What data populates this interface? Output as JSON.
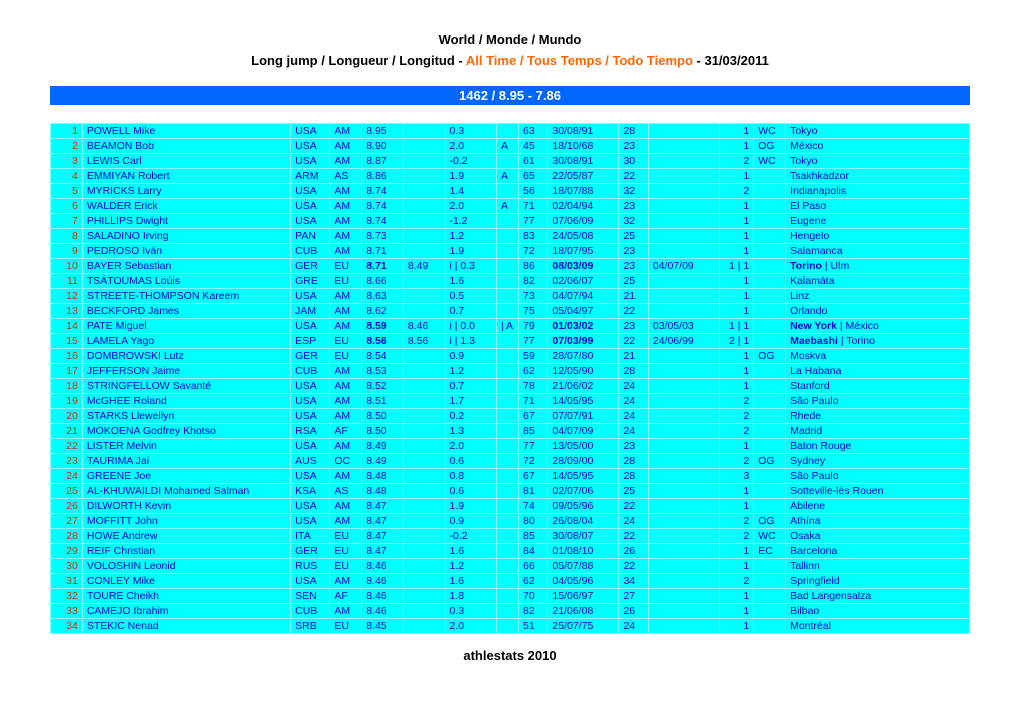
{
  "header": {
    "line1": "World / Monde / Mundo",
    "line2_prefix": "Long jump / Longueur / Longitud - ",
    "line2_alltime": "All Time / Tous Temps / Todo Tiempo",
    "line2_suffix": " - 31/03/2011"
  },
  "summary": "1462 / 8.95 - 7.86",
  "footer": "athlestats 2010",
  "colors": {
    "row_bg": "#00ffff",
    "bar_bg": "#0066ff",
    "text": "#0000cc",
    "rank": "#cc3300",
    "alltime": "#ff6600"
  },
  "rows": [
    {
      "rank": "1",
      "name": "POWELL Mike",
      "nat": "USA",
      "area": "AM",
      "mark": "8.95",
      "mark2": "",
      "wind": "0.3",
      "flag": "",
      "yob": "63",
      "date": "30/08/91",
      "age": "28",
      "date2": "",
      "pos": "1",
      "cat": "WC",
      "venue": "Tokyo"
    },
    {
      "rank": "2",
      "name": "BEAMON Bob",
      "nat": "USA",
      "area": "AM",
      "mark": "8.90",
      "mark2": "",
      "wind": "2.0",
      "flag": "A",
      "yob": "45",
      "date": "18/10/68",
      "age": "23",
      "date2": "",
      "pos": "1",
      "cat": "OG",
      "venue": "México"
    },
    {
      "rank": "3",
      "name": "LEWIS Carl",
      "nat": "USA",
      "area": "AM",
      "mark": "8.87",
      "mark2": "",
      "wind": "-0.2",
      "flag": "",
      "yob": "61",
      "date": "30/08/91",
      "age": "30",
      "date2": "",
      "pos": "2",
      "cat": "WC",
      "venue": "Tokyo"
    },
    {
      "rank": "4",
      "name": "EMMIYAN Robert",
      "nat": "ARM",
      "area": "AS",
      "mark": "8.86",
      "mark2": "",
      "wind": "1.9",
      "flag": "A",
      "yob": "65",
      "date": "22/05/87",
      "age": "22",
      "date2": "",
      "pos": "1",
      "cat": "",
      "venue": "Tsakhkadzor"
    },
    {
      "rank": "5",
      "name": "MYRICKS Larry",
      "nat": "USA",
      "area": "AM",
      "mark": "8.74",
      "mark2": "",
      "wind": "1.4",
      "flag": "",
      "yob": "56",
      "date": "18/07/88",
      "age": "32",
      "date2": "",
      "pos": "2",
      "cat": "",
      "venue": "Indianapolis"
    },
    {
      "rank": "6",
      "name": "WALDER Erick",
      "nat": "USA",
      "area": "AM",
      "mark": "8.74",
      "mark2": "",
      "wind": "2.0",
      "flag": "A",
      "yob": "71",
      "date": "02/04/94",
      "age": "23",
      "date2": "",
      "pos": "1",
      "cat": "",
      "venue": "El Paso"
    },
    {
      "rank": "7",
      "name": "PHILLIPS Dwight",
      "nat": "USA",
      "area": "AM",
      "mark": "8.74",
      "mark2": "",
      "wind": "-1.2",
      "flag": "",
      "yob": "77",
      "date": "07/06/09",
      "age": "32",
      "date2": "",
      "pos": "1",
      "cat": "",
      "venue": "Eugene"
    },
    {
      "rank": "8",
      "name": "SALADINO Irving",
      "nat": "PAN",
      "area": "AM",
      "mark": "8.73",
      "mark2": "",
      "wind": "1.2",
      "flag": "",
      "yob": "83",
      "date": "24/05/08",
      "age": "25",
      "date2": "",
      "pos": "1",
      "cat": "",
      "venue": "Hengelo"
    },
    {
      "rank": "9",
      "name": "PEDROSO Iván",
      "nat": "CUB",
      "area": "AM",
      "mark": "8.71",
      "mark2": "",
      "wind": "1.9",
      "flag": "",
      "yob": "72",
      "date": "18/07/95",
      "age": "23",
      "date2": "",
      "pos": "1",
      "cat": "",
      "venue": "Salamanca"
    },
    {
      "rank": "10",
      "name": "BAYER Sebastian",
      "nat": "GER",
      "area": "EU",
      "mark": "8.71",
      "mark_bold": true,
      "mark2": "8.49",
      "wind": "i | 0.3",
      "flag": "",
      "yob": "86",
      "date": "08/03/09",
      "date_bold": true,
      "age": "23",
      "date2": "04/07/09",
      "pos": "1 | 1",
      "cat": "",
      "venue": "Torino | Ulm",
      "venue_bold_prefix": "Torino"
    },
    {
      "rank": "11",
      "name": "TSÁTOUMAS Loúis",
      "nat": "GRE",
      "area": "EU",
      "mark": "8.66",
      "mark2": "",
      "wind": "1.6",
      "flag": "",
      "yob": "82",
      "date": "02/06/07",
      "age": "25",
      "date2": "",
      "pos": "1",
      "cat": "",
      "venue": "Kalamáta"
    },
    {
      "rank": "12",
      "name": "STREETE-THOMPSON Kareem",
      "nat": "USA",
      "area": "AM",
      "mark": "8.63",
      "mark2": "",
      "wind": "0.5",
      "flag": "",
      "yob": "73",
      "date": "04/07/94",
      "age": "21",
      "date2": "",
      "pos": "1",
      "cat": "",
      "venue": "Linz"
    },
    {
      "rank": "13",
      "name": "BECKFORD James",
      "nat": "JAM",
      "area": "AM",
      "mark": "8.62",
      "mark2": "",
      "wind": "0.7",
      "flag": "",
      "yob": "75",
      "date": "05/04/97",
      "age": "22",
      "date2": "",
      "pos": "1",
      "cat": "",
      "venue": "Orlando"
    },
    {
      "rank": "14",
      "name": "PATE Miguel",
      "nat": "USA",
      "area": "AM",
      "mark": "8.59",
      "mark_bold": true,
      "mark2": "8.46",
      "wind": "i | 0.0",
      "flag": "| A",
      "yob": "79",
      "date": "01/03/02",
      "date_bold": true,
      "age": "23",
      "date2": "03/05/03",
      "pos": "1 | 1",
      "cat": "",
      "venue": "New York | México",
      "venue_bold_prefix": "New York"
    },
    {
      "rank": "15",
      "name": "LAMELA Yago",
      "nat": "ESP",
      "area": "EU",
      "mark": "8.56",
      "mark_bold": true,
      "mark2": "8.56",
      "wind": "i | 1.3",
      "flag": "",
      "yob": "77",
      "date": "07/03/99",
      "date_bold": true,
      "age": "22",
      "date2": "24/06/99",
      "pos": "2 | 1",
      "cat": "",
      "venue": "Maebashi | Torino",
      "venue_bold_prefix": "Maebashi"
    },
    {
      "rank": "16",
      "name": "DOMBROWSKI Lutz",
      "nat": "GER",
      "area": "EU",
      "mark": "8.54",
      "mark2": "",
      "wind": "0.9",
      "flag": "",
      "yob": "59",
      "date": "28/07/80",
      "age": "21",
      "date2": "",
      "pos": "1",
      "cat": "OG",
      "venue": "Moskva"
    },
    {
      "rank": "17",
      "name": "JEFFERSON Jaime",
      "nat": "CUB",
      "area": "AM",
      "mark": "8.53",
      "mark2": "",
      "wind": "1.2",
      "flag": "",
      "yob": "62",
      "date": "12/05/90",
      "age": "28",
      "date2": "",
      "pos": "1",
      "cat": "",
      "venue": "La Habana"
    },
    {
      "rank": "18",
      "name": "STRINGFELLOW Savanté",
      "nat": "USA",
      "area": "AM",
      "mark": "8.52",
      "mark2": "",
      "wind": "0.7",
      "flag": "",
      "yob": "78",
      "date": "21/06/02",
      "age": "24",
      "date2": "",
      "pos": "1",
      "cat": "",
      "venue": "Stanford"
    },
    {
      "rank": "19",
      "name": "McGHEE Roland",
      "nat": "USA",
      "area": "AM",
      "mark": "8.51",
      "mark2": "",
      "wind": "1.7",
      "flag": "",
      "yob": "71",
      "date": "14/05/95",
      "age": "24",
      "date2": "",
      "pos": "2",
      "cat": "",
      "venue": "São Paulo"
    },
    {
      "rank": "20",
      "name": "STARKS Llewellyn",
      "nat": "USA",
      "area": "AM",
      "mark": "8.50",
      "mark2": "",
      "wind": "0.2",
      "flag": "",
      "yob": "67",
      "date": "07/07/91",
      "age": "24",
      "date2": "",
      "pos": "2",
      "cat": "",
      "venue": "Rhede"
    },
    {
      "rank": "21",
      "name": "MOKOENA Godfrey Khotso",
      "nat": "RSA",
      "area": "AF",
      "mark": "8.50",
      "mark2": "",
      "wind": "1.3",
      "flag": "",
      "yob": "85",
      "date": "04/07/09",
      "age": "24",
      "date2": "",
      "pos": "2",
      "cat": "",
      "venue": "Madrid"
    },
    {
      "rank": "22",
      "name": "LISTER Melvin",
      "nat": "USA",
      "area": "AM",
      "mark": "8.49",
      "mark2": "",
      "wind": "2.0",
      "flag": "",
      "yob": "77",
      "date": "13/05/00",
      "age": "23",
      "date2": "",
      "pos": "1",
      "cat": "",
      "venue": "Baton Rouge"
    },
    {
      "rank": "23",
      "name": "TAURIMA Jai",
      "nat": "AUS",
      "area": "OC",
      "mark": "8.49",
      "mark2": "",
      "wind": "0.6",
      "flag": "",
      "yob": "72",
      "date": "28/09/00",
      "age": "28",
      "date2": "",
      "pos": "2",
      "cat": "OG",
      "venue": "Sydney"
    },
    {
      "rank": "24",
      "name": "GREENE Joe",
      "nat": "USA",
      "area": "AM",
      "mark": "8.48",
      "mark2": "",
      "wind": "0.8",
      "flag": "",
      "yob": "67",
      "date": "14/05/95",
      "age": "28",
      "date2": "",
      "pos": "3",
      "cat": "",
      "venue": "São Paulo"
    },
    {
      "rank": "25",
      "name": "AL-KHUWAILDI Mohamed Salman",
      "nat": "KSA",
      "area": "AS",
      "mark": "8.48",
      "mark2": "",
      "wind": "0.6",
      "flag": "",
      "yob": "81",
      "date": "02/07/06",
      "age": "25",
      "date2": "",
      "pos": "1",
      "cat": "",
      "venue": "Sotteville-lès Rouen"
    },
    {
      "rank": "26",
      "name": "DILWORTH Kevin",
      "nat": "USA",
      "area": "AM",
      "mark": "8.47",
      "mark2": "",
      "wind": "1.9",
      "flag": "",
      "yob": "74",
      "date": "09/05/96",
      "age": "22",
      "date2": "",
      "pos": "1",
      "cat": "",
      "venue": "Abilene"
    },
    {
      "rank": "27",
      "name": "MOFFITT John",
      "nat": "USA",
      "area": "AM",
      "mark": "8.47",
      "mark2": "",
      "wind": "0.9",
      "flag": "",
      "yob": "80",
      "date": "26/08/04",
      "age": "24",
      "date2": "",
      "pos": "2",
      "cat": "OG",
      "venue": "Athína"
    },
    {
      "rank": "28",
      "name": "HOWE Andrew",
      "nat": "ITA",
      "area": "EU",
      "mark": "8.47",
      "mark2": "",
      "wind": "-0.2",
      "flag": "",
      "yob": "85",
      "date": "30/08/07",
      "age": "22",
      "date2": "",
      "pos": "2",
      "cat": "WC",
      "venue": "Osaka"
    },
    {
      "rank": "29",
      "name": "REIF Christian",
      "nat": "GER",
      "area": "EU",
      "mark": "8.47",
      "mark2": "",
      "wind": "1.6",
      "flag": "",
      "yob": "84",
      "date": "01/08/10",
      "age": "26",
      "date2": "",
      "pos": "1",
      "cat": "EC",
      "venue": "Barcelona"
    },
    {
      "rank": "30",
      "name": "VOLOSHIN Leonid",
      "nat": "RUS",
      "area": "EU",
      "mark": "8.46",
      "mark2": "",
      "wind": "1.2",
      "flag": "",
      "yob": "66",
      "date": "05/07/88",
      "age": "22",
      "date2": "",
      "pos": "1",
      "cat": "",
      "venue": "Tallinn"
    },
    {
      "rank": "31",
      "name": "CONLEY Mike",
      "nat": "USA",
      "area": "AM",
      "mark": "8.46",
      "mark2": "",
      "wind": "1.6",
      "flag": "",
      "yob": "62",
      "date": "04/05/96",
      "age": "34",
      "date2": "",
      "pos": "2",
      "cat": "",
      "venue": "Springfield"
    },
    {
      "rank": "32",
      "name": "TOURE Cheikh",
      "nat": "SEN",
      "area": "AF",
      "mark": "8.46",
      "mark2": "",
      "wind": "1.8",
      "flag": "",
      "yob": "70",
      "date": "15/06/97",
      "age": "27",
      "date2": "",
      "pos": "1",
      "cat": "",
      "venue": "Bad Langensalza"
    },
    {
      "rank": "33",
      "name": "CAMEJO Ibrahim",
      "nat": "CUB",
      "area": "AM",
      "mark": "8.46",
      "mark2": "",
      "wind": "0.3",
      "flag": "",
      "yob": "82",
      "date": "21/06/08",
      "age": "26",
      "date2": "",
      "pos": "1",
      "cat": "",
      "venue": "Bilbao"
    },
    {
      "rank": "34",
      "name": "STEKIC Nenad",
      "nat": "SRB",
      "area": "EU",
      "mark": "8.45",
      "mark2": "",
      "wind": "2.0",
      "flag": "",
      "yob": "51",
      "date": "25/07/75",
      "age": "24",
      "date2": "",
      "pos": "1",
      "cat": "",
      "venue": "Montréal"
    }
  ]
}
